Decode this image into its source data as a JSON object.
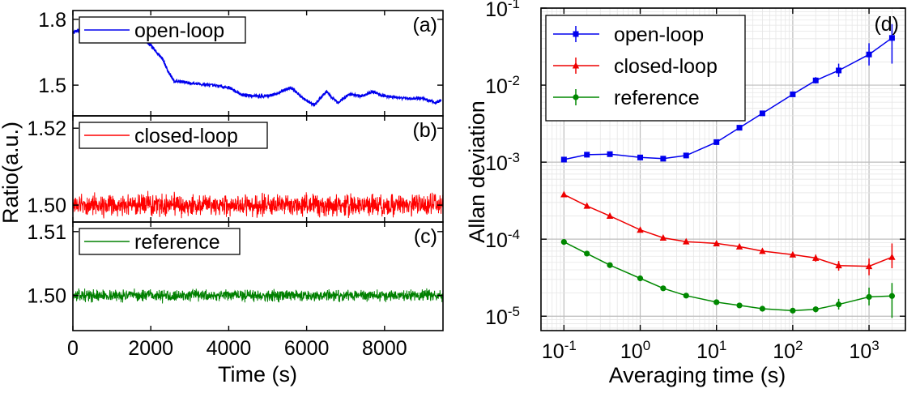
{
  "chart_data": [
    {
      "type": "line",
      "panel": "(a)",
      "ylabel": "Ratio(a.u.)",
      "xlabel": "",
      "xlim": [
        0,
        9500
      ],
      "ylim": [
        1.36,
        1.84
      ],
      "yticks": [
        1.5,
        1.8
      ],
      "ytick_labels": [
        "1.5",
        "1.8"
      ],
      "xticks": [
        0,
        2000,
        4000,
        6000,
        8000
      ],
      "legend": "top-left",
      "series": [
        {
          "name": "open-loop",
          "color": "#0000ee",
          "noise": 0.007,
          "x": [
            0,
            300,
            600,
            1000,
            1400,
            1550,
            1650,
            1900,
            2100,
            2300,
            2450,
            2600,
            3000,
            3500,
            4000,
            4300,
            4600,
            5000,
            5200,
            5600,
            5900,
            6200,
            6500,
            6800,
            7100,
            7400,
            7700,
            8000,
            8500,
            9000,
            9300,
            9450
          ],
          "y": [
            1.74,
            1.76,
            1.76,
            1.75,
            1.72,
            1.7,
            1.73,
            1.7,
            1.66,
            1.62,
            1.56,
            1.52,
            1.51,
            1.5,
            1.49,
            1.46,
            1.45,
            1.45,
            1.46,
            1.49,
            1.44,
            1.41,
            1.47,
            1.42,
            1.46,
            1.45,
            1.47,
            1.45,
            1.44,
            1.44,
            1.42,
            1.43
          ]
        }
      ]
    },
    {
      "type": "line",
      "panel": "(b)",
      "xlim": [
        0,
        9500
      ],
      "ylim": [
        1.4956,
        1.5232
      ],
      "yticks": [
        1.5,
        1.52
      ],
      "ytick_labels": [
        "1.50",
        "1.52"
      ],
      "xticks": [
        0,
        2000,
        4000,
        6000,
        8000
      ],
      "legend": "top-left",
      "series": [
        {
          "name": "closed-loop",
          "color": "#ff0000",
          "mean": 1.5,
          "amplitude": 0.004
        }
      ]
    },
    {
      "type": "line",
      "panel": "(c)",
      "xlim": [
        0,
        9500
      ],
      "ylim": [
        1.4945,
        1.5115
      ],
      "yticks": [
        1.5,
        1.51
      ],
      "ytick_labels": [
        "1.50",
        "1.51"
      ],
      "xticks": [
        0,
        2000,
        4000,
        6000,
        8000
      ],
      "legend": "top-left",
      "series": [
        {
          "name": "reference",
          "color": "#008000",
          "mean": 1.5,
          "amplitude": 0.0013
        }
      ]
    },
    {
      "type": "line",
      "panel": "(d)",
      "xscale": "log",
      "yscale": "log",
      "xlabel": "Averaging time (s)",
      "ylabel": "Allan deviation",
      "xlim": [
        0.05,
        3000
      ],
      "ylim": [
        6.5e-06,
        0.1
      ],
      "xticks": [
        0.1,
        1,
        10,
        100,
        1000
      ],
      "xtick_labels": [
        [
          "10",
          "-1"
        ],
        [
          "10",
          "0"
        ],
        [
          "10",
          "1"
        ],
        [
          "10",
          "2"
        ],
        [
          "10",
          "3"
        ]
      ],
      "yticks": [
        1e-05,
        0.0001,
        0.001,
        0.01,
        0.1
      ],
      "ytick_labels": [
        [
          "10",
          "-5"
        ],
        [
          "10",
          "-4"
        ],
        [
          "10",
          "-3"
        ],
        [
          "10",
          "-2"
        ],
        [
          "10",
          "-1"
        ]
      ],
      "grid": true,
      "legend": "top-left",
      "series": [
        {
          "name": "open-loop",
          "color": "#0000ee",
          "marker": "square",
          "x": [
            0.1,
            0.2,
            0.4,
            1,
            2,
            4,
            10,
            20,
            40,
            100,
            200,
            400,
            1000,
            2000
          ],
          "y": [
            0.00108,
            0.00125,
            0.00127,
            0.00115,
            0.00111,
            0.00122,
            0.00182,
            0.0028,
            0.0043,
            0.0076,
            0.0115,
            0.0155,
            0.025,
            0.041
          ],
          "err_lo": [
            0.00108,
            0.00125,
            0.00127,
            0.00115,
            0.00111,
            0.00122,
            0.00182,
            0.0028,
            0.0043,
            0.0076,
            0.0105,
            0.0128,
            0.018,
            0.019
          ],
          "err_hi": [
            0.00108,
            0.00125,
            0.00127,
            0.00115,
            0.00111,
            0.00122,
            0.00182,
            0.0028,
            0.0043,
            0.0076,
            0.0127,
            0.019,
            0.035,
            0.062
          ]
        },
        {
          "name": "closed-loop",
          "color": "#ee0000",
          "marker": "triangle",
          "x": [
            0.1,
            0.2,
            0.4,
            1,
            2,
            4,
            10,
            20,
            40,
            100,
            200,
            400,
            1000,
            2000
          ],
          "y": [
            0.00038,
            0.00027,
            0.0002,
            0.000132,
            0.000104,
            9.3e-05,
            8.8e-05,
            8e-05,
            7e-05,
            6.3e-05,
            5.7e-05,
            4.55e-05,
            4.45e-05,
            5.85e-05
          ],
          "err_lo": [
            0.00038,
            0.00027,
            0.0002,
            0.000132,
            0.000104,
            9.3e-05,
            8.8e-05,
            8e-05,
            7e-05,
            6.3e-05,
            5.1e-05,
            3.9e-05,
            3.4e-05,
            4.2e-05
          ],
          "err_hi": [
            0.00038,
            0.00027,
            0.0002,
            0.000132,
            0.000104,
            9.3e-05,
            8.8e-05,
            8e-05,
            7e-05,
            6.3e-05,
            6.3e-05,
            5.2e-05,
            5.6e-05,
            8.8e-05
          ]
        },
        {
          "name": "reference",
          "color": "#008800",
          "marker": "circle",
          "x": [
            0.1,
            0.2,
            0.4,
            1,
            2,
            4,
            10,
            20,
            40,
            100,
            200,
            400,
            1000,
            2000
          ],
          "y": [
            9.2e-05,
            6.5e-05,
            4.6e-05,
            3.1e-05,
            2.3e-05,
            1.85e-05,
            1.52e-05,
            1.38e-05,
            1.25e-05,
            1.18e-05,
            1.23e-05,
            1.42e-05,
            1.78e-05,
            1.83e-05
          ],
          "err_lo": [
            9.2e-05,
            6.5e-05,
            4.6e-05,
            3.1e-05,
            2.3e-05,
            1.85e-05,
            1.52e-05,
            1.38e-05,
            1.25e-05,
            1.18e-05,
            1.12e-05,
            1.22e-05,
            1.38e-05,
            9.5e-06
          ],
          "err_hi": [
            9.2e-05,
            6.5e-05,
            4.6e-05,
            3.1e-05,
            2.3e-05,
            1.85e-05,
            1.52e-05,
            1.38e-05,
            1.25e-05,
            1.18e-05,
            1.34e-05,
            1.68e-05,
            2.35e-05,
            2.7e-05
          ]
        }
      ]
    }
  ],
  "left_axes": {
    "xlabel": "Time (s)",
    "ylabel": "Ratio(a.u.)",
    "xtick_labels": [
      "0",
      "2000",
      "4000",
      "6000",
      "8000"
    ]
  }
}
